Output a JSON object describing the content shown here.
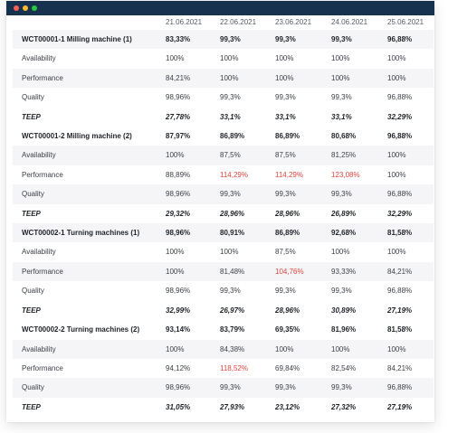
{
  "window": {
    "controls": [
      {
        "name": "close",
        "color": "#ff5f56"
      },
      {
        "name": "minimize",
        "color": "#ffbd2e"
      },
      {
        "name": "maximize",
        "color": "#27c93f"
      }
    ]
  },
  "table": {
    "columns": [
      "",
      "21.06.2021",
      "22.06.2021",
      "23.06.2021",
      "24.06.2021",
      "25.06.2021"
    ],
    "highlight_color": "#e0463e",
    "rows": [
      {
        "type": "machine",
        "label": "WCT00001-1 Milling machine (1)",
        "values": [
          "83,33%",
          "99,3%",
          "99,3%",
          "99,3%",
          "96,88%"
        ]
      },
      {
        "type": "metric",
        "label": "Availability",
        "values": [
          "100%",
          "100%",
          "100%",
          "100%",
          "100%"
        ]
      },
      {
        "type": "metric",
        "label": "Performance",
        "values": [
          "84,21%",
          "100%",
          "100%",
          "100%",
          "100%"
        ]
      },
      {
        "type": "metric",
        "label": "Quality",
        "values": [
          "98,96%",
          "99,3%",
          "99,3%",
          "99,3%",
          "96,88%"
        ]
      },
      {
        "type": "teep",
        "label": "TEEP",
        "values": [
          "27,78%",
          "33,1%",
          "33,1%",
          "33,1%",
          "32,29%"
        ]
      },
      {
        "type": "machine",
        "label": "WCT00001-2 Milling machine (2)",
        "values": [
          "87,97%",
          "86,89%",
          "86,89%",
          "80,68%",
          "96,88%"
        ]
      },
      {
        "type": "metric",
        "label": "Availability",
        "values": [
          "100%",
          "87,5%",
          "87,5%",
          "81,25%",
          "100%"
        ]
      },
      {
        "type": "metric",
        "label": "Performance",
        "values": [
          "88,89%",
          "114,29%",
          "114,29%",
          "123,08%",
          "100%"
        ],
        "red": [
          1,
          2,
          3
        ]
      },
      {
        "type": "metric",
        "label": "Quality",
        "values": [
          "98,96%",
          "99,3%",
          "99,3%",
          "99,3%",
          "96,88%"
        ]
      },
      {
        "type": "teep",
        "label": "TEEP",
        "values": [
          "29,32%",
          "28,96%",
          "28,96%",
          "26,89%",
          "32,29%"
        ]
      },
      {
        "type": "machine",
        "label": "WCT00002-1 Turning machines (1)",
        "values": [
          "98,96%",
          "80,91%",
          "86,89%",
          "92,68%",
          "81,58%"
        ]
      },
      {
        "type": "metric",
        "label": "Availability",
        "values": [
          "100%",
          "100%",
          "87,5%",
          "100%",
          "100%"
        ]
      },
      {
        "type": "metric",
        "label": "Performance",
        "values": [
          "100%",
          "81,48%",
          "104,76%",
          "93,33%",
          "84,21%"
        ],
        "red": [
          2
        ]
      },
      {
        "type": "metric",
        "label": "Quality",
        "values": [
          "98,96%",
          "99,3%",
          "99,3%",
          "99,3%",
          "96,88%"
        ]
      },
      {
        "type": "teep",
        "label": "TEEP",
        "values": [
          "32,99%",
          "26,97%",
          "28,96%",
          "30,89%",
          "27,19%"
        ]
      },
      {
        "type": "machine",
        "label": "WCT00002-2 Turning machines (2)",
        "values": [
          "93,14%",
          "83,79%",
          "69,35%",
          "81,96%",
          "81,58%"
        ]
      },
      {
        "type": "metric",
        "label": "Availability",
        "values": [
          "100%",
          "84,38%",
          "100%",
          "100%",
          "100%"
        ]
      },
      {
        "type": "metric",
        "label": "Performance",
        "values": [
          "94,12%",
          "118,52%",
          "69,84%",
          "82,54%",
          "84,21%"
        ],
        "red": [
          1
        ]
      },
      {
        "type": "metric",
        "label": "Quality",
        "values": [
          "98,96%",
          "99,3%",
          "99,3%",
          "99,3%",
          "96,88%"
        ]
      },
      {
        "type": "teep",
        "label": "TEEP",
        "values": [
          "31,05%",
          "27,93%",
          "23,12%",
          "27,32%",
          "27,19%"
        ]
      }
    ]
  }
}
